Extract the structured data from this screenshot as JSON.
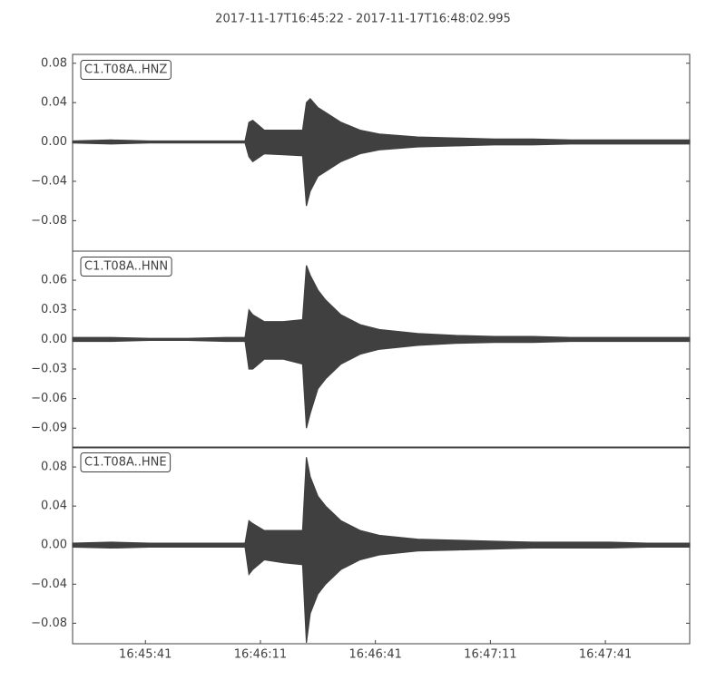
{
  "chart_data": [
    {
      "type": "seismogram",
      "title": "2017-11-17T16:45:22  -  2017-11-17T16:48:02.995",
      "label": "C1.T08A..HNZ",
      "x": [
        0,
        10,
        20,
        30,
        40,
        45,
        46,
        47,
        50,
        55,
        60,
        61,
        62,
        64,
        66,
        70,
        75,
        80,
        90,
        100,
        110,
        120,
        130,
        140,
        150,
        161
      ],
      "series": [
        {
          "color": "#404040",
          "values": [
            0.001,
            0.002,
            0.001,
            0.001,
            0.001,
            0.001,
            0.02,
            0.022,
            0.012,
            0.012,
            0.012,
            0.04,
            0.044,
            0.035,
            0.03,
            0.02,
            0.012,
            0.008,
            0.005,
            0.004,
            0.003,
            0.003,
            0.002,
            0.002,
            0.002,
            0.002
          ]
        },
        {
          "color": "#404040",
          "values": [
            -0.001,
            -0.002,
            -0.001,
            -0.001,
            -0.001,
            -0.001,
            -0.015,
            -0.02,
            -0.012,
            -0.013,
            -0.014,
            -0.065,
            -0.05,
            -0.035,
            -0.03,
            -0.02,
            -0.012,
            -0.008,
            -0.005,
            -0.004,
            -0.003,
            -0.003,
            -0.002,
            -0.002,
            -0.002,
            -0.002
          ]
        }
      ],
      "xlim": [
        0,
        161
      ],
      "ylim": [
        -0.111,
        0.089
      ],
      "yticks": [
        0.08,
        0.04,
        {
          "value": 0,
          "label": "0.00"
        },
        {
          "value": -0.04,
          "label": "−0.04"
        },
        {
          "value": -0.08,
          "label": "−0.08"
        }
      ]
    },
    {
      "type": "seismogram",
      "label": "C1.T08A..HNN",
      "x": [
        0,
        10,
        20,
        30,
        40,
        45,
        46,
        47,
        50,
        55,
        60,
        61,
        62,
        64,
        66,
        70,
        75,
        80,
        90,
        100,
        110,
        120,
        130,
        140,
        150,
        161
      ],
      "series": [
        {
          "color": "#404040",
          "values": [
            0.002,
            0.002,
            0.001,
            0.001,
            0.002,
            0.002,
            0.03,
            0.025,
            0.018,
            0.018,
            0.02,
            0.075,
            0.065,
            0.05,
            0.04,
            0.025,
            0.015,
            0.01,
            0.006,
            0.004,
            0.003,
            0.003,
            0.002,
            0.002,
            0.002,
            0.002
          ]
        },
        {
          "color": "#404040",
          "values": [
            -0.002,
            -0.002,
            -0.001,
            -0.001,
            -0.002,
            -0.002,
            -0.03,
            -0.03,
            -0.02,
            -0.02,
            -0.025,
            -0.09,
            -0.075,
            -0.05,
            -0.04,
            -0.025,
            -0.015,
            -0.01,
            -0.006,
            -0.004,
            -0.003,
            -0.003,
            -0.002,
            -0.002,
            -0.002,
            -0.002
          ]
        }
      ],
      "xlim": [
        0,
        161
      ],
      "ylim": [
        -0.11,
        0.0895
      ],
      "yticks": [
        0.06,
        0.03,
        {
          "value": 0,
          "label": "0.00"
        },
        {
          "value": -0.03,
          "label": "−0.03"
        },
        {
          "value": -0.06,
          "label": "−0.06"
        },
        {
          "value": -0.09,
          "label": "−0.09"
        }
      ]
    },
    {
      "type": "seismogram",
      "label": "C1.T08A..HNE",
      "x": [
        0,
        10,
        20,
        30,
        40,
        45,
        46,
        47,
        50,
        55,
        60,
        61,
        62,
        64,
        66,
        70,
        75,
        80,
        90,
        100,
        110,
        120,
        130,
        140,
        150,
        161
      ],
      "series": [
        {
          "color": "#404040",
          "values": [
            0.002,
            0.003,
            0.002,
            0.002,
            0.002,
            0.002,
            0.025,
            0.022,
            0.015,
            0.015,
            0.015,
            0.09,
            0.07,
            0.05,
            0.04,
            0.025,
            0.015,
            0.01,
            0.006,
            0.005,
            0.004,
            0.003,
            0.003,
            0.003,
            0.002,
            0.002
          ]
        },
        {
          "color": "#404040",
          "values": [
            -0.002,
            -0.003,
            -0.002,
            -0.002,
            -0.002,
            -0.002,
            -0.03,
            -0.025,
            -0.015,
            -0.018,
            -0.02,
            -0.1,
            -0.07,
            -0.05,
            -0.04,
            -0.025,
            -0.015,
            -0.01,
            -0.006,
            -0.005,
            -0.004,
            -0.003,
            -0.003,
            -0.003,
            -0.002,
            -0.002
          ]
        }
      ],
      "xlim": [
        0,
        161
      ],
      "ylim": [
        -0.101,
        0.1005
      ],
      "yticks": [
        0.08,
        0.04,
        {
          "value": 0,
          "label": "0.00"
        },
        {
          "value": -0.04,
          "label": "−0.04"
        },
        {
          "value": -0.08,
          "label": "−0.08"
        }
      ],
      "xticks": [
        {
          "value": 19,
          "label": "16:45:41"
        },
        {
          "value": 49,
          "label": "16:46:11"
        },
        {
          "value": 79,
          "label": "16:46:41"
        },
        {
          "value": 109,
          "label": "16:47:11"
        },
        {
          "value": 139,
          "label": "16:47:41"
        }
      ]
    }
  ]
}
